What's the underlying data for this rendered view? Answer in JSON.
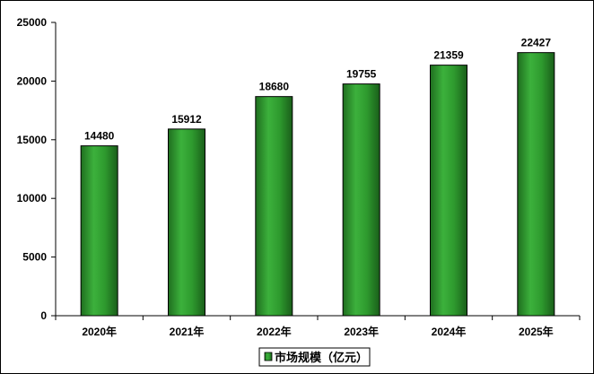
{
  "chart_data": {
    "type": "bar",
    "categories": [
      "2020年",
      "2021年",
      "2022年",
      "2023年",
      "2024年",
      "2025年"
    ],
    "series": [
      {
        "name": "市场规模（亿元）",
        "values": [
          14480,
          15912,
          18680,
          19755,
          21359,
          22427
        ]
      }
    ],
    "ylim": [
      0,
      25000
    ],
    "yticks": [
      0,
      5000,
      10000,
      15000,
      20000,
      25000
    ],
    "data_labels": true,
    "grid": false,
    "legend_position": "bottom-center",
    "colors": {
      "bar": "#2e9a2e",
      "bar_edge": "#000000"
    }
  }
}
